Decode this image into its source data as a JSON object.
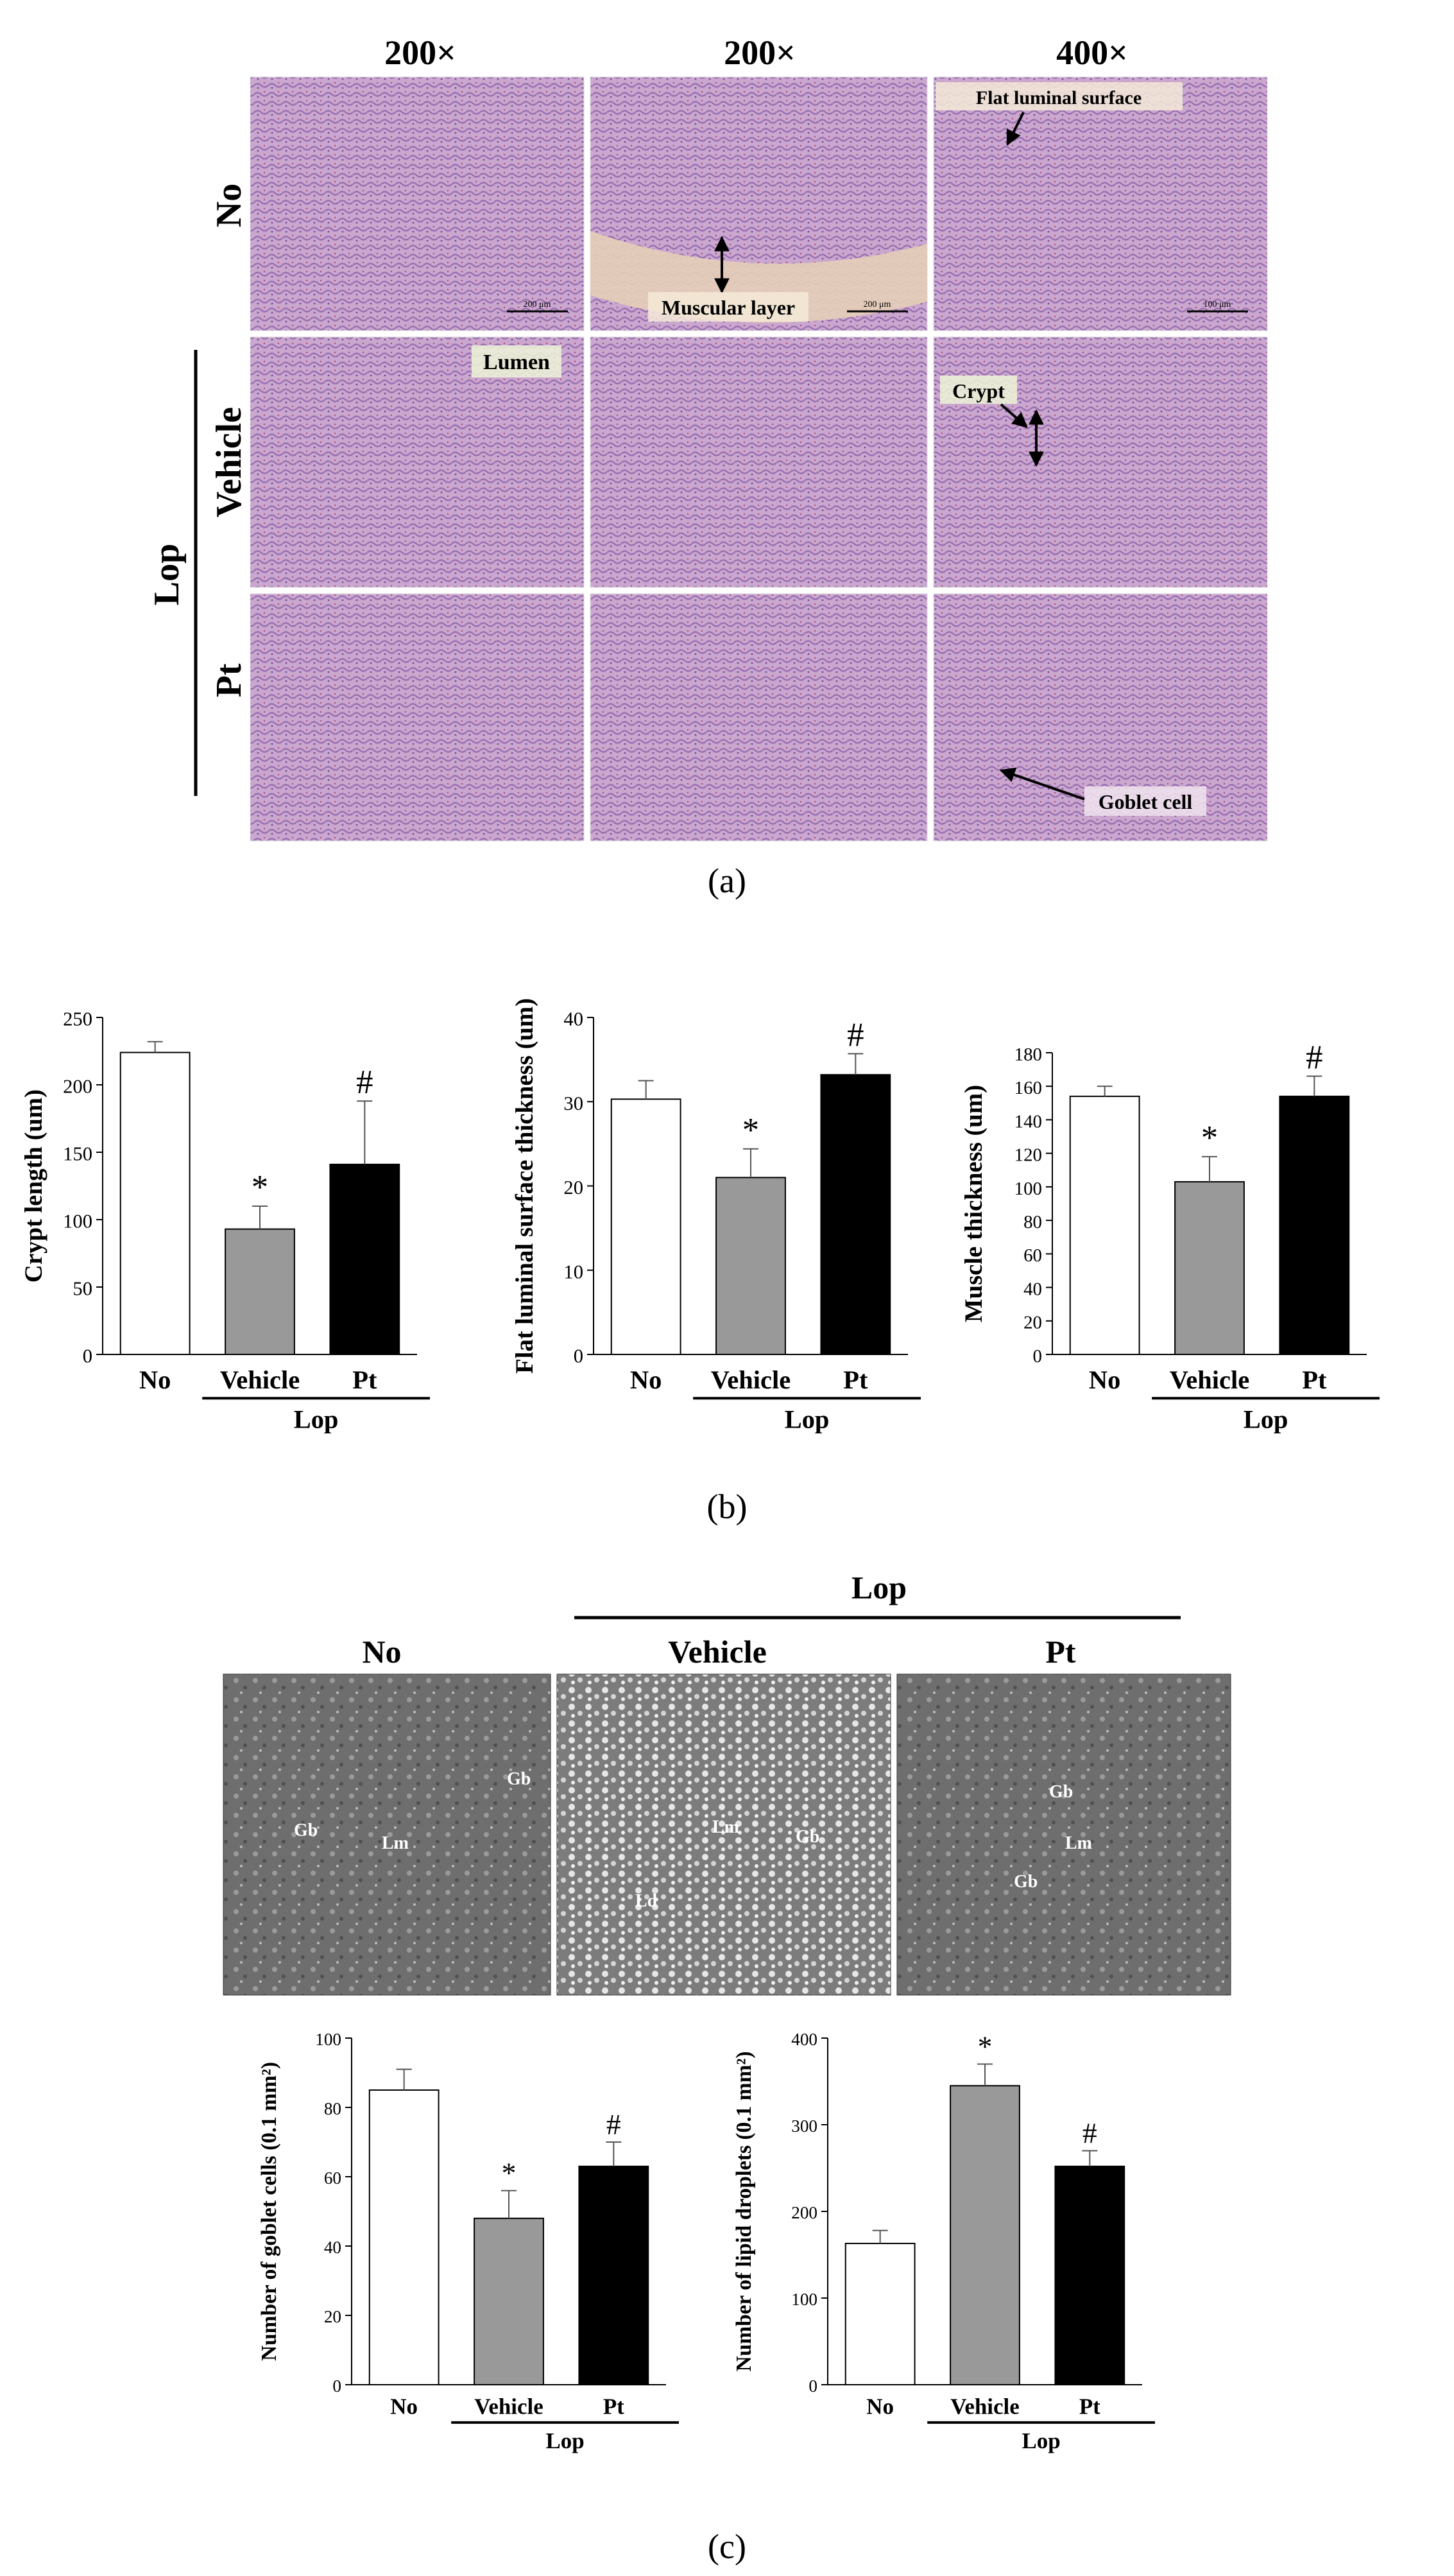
{
  "panel_a": {
    "columns": [
      "200×",
      "200×",
      "400×"
    ],
    "rows": [
      "No",
      "Vehicle",
      "Pt"
    ],
    "group_label": "Lop",
    "annotations": {
      "lumen": "Lumen",
      "muscular_layer": "Muscular layer",
      "flat_luminal_surface": "Flat luminal surface",
      "crypt": "Crypt",
      "goblet_cell": "Goblet cell"
    },
    "scalebars": [
      "200 μm",
      "200 μm",
      "100 μm"
    ],
    "caption": "(a)"
  },
  "panel_b_caption": "(b)",
  "panel_c": {
    "group_label": "Lop",
    "columns": [
      "No",
      "Vehicle",
      "Pt"
    ],
    "tem_labels": {
      "gb": "Gb",
      "lm": "Lm",
      "ld": "Ld"
    },
    "caption": "(c)"
  },
  "colors": {
    "no": "#ffffff",
    "vehicle": "#999999",
    "pt": "#000000"
  },
  "chart_data": [
    {
      "type": "bar",
      "categories": [
        "No",
        "Vehicle",
        "Pt"
      ],
      "group_label": "Lop",
      "values": [
        224,
        93,
        141
      ],
      "errors": [
        8,
        17,
        47
      ],
      "markers": [
        "",
        "*",
        "#"
      ],
      "ylabel": "Crypt length (um)",
      "ylim": [
        0,
        250
      ],
      "yticks": [
        0,
        50,
        100,
        150,
        200,
        250
      ]
    },
    {
      "type": "bar",
      "categories": [
        "No",
        "Vehicle",
        "Pt"
      ],
      "group_label": "Lop",
      "values": [
        30.3,
        21.0,
        33.2
      ],
      "errors": [
        2.2,
        3.4,
        2.5
      ],
      "markers": [
        "",
        "*",
        "#"
      ],
      "ylabel": "Flat luminal surface thickness (um)",
      "ylim": [
        0,
        40
      ],
      "yticks": [
        0,
        10,
        20,
        30,
        40
      ]
    },
    {
      "type": "bar",
      "categories": [
        "No",
        "Vehicle",
        "Pt"
      ],
      "group_label": "Lop",
      "values": [
        154,
        103,
        154
      ],
      "errors": [
        6,
        15,
        12
      ],
      "markers": [
        "",
        "*",
        "#"
      ],
      "ylabel": "Muscle thickness (um)",
      "ylim": [
        0,
        180
      ],
      "yticks": [
        0,
        20,
        40,
        60,
        80,
        100,
        120,
        140,
        160,
        180
      ]
    },
    {
      "type": "bar",
      "categories": [
        "No",
        "Vehicle",
        "Pt"
      ],
      "group_label": "Lop",
      "values": [
        85,
        48,
        63
      ],
      "errors": [
        6,
        8,
        7
      ],
      "markers": [
        "",
        "*",
        "#"
      ],
      "ylabel": "Number of goblet cells (0.1 mm²)",
      "ylim": [
        0,
        100
      ],
      "yticks": [
        0,
        20,
        40,
        60,
        80,
        100
      ]
    },
    {
      "type": "bar",
      "categories": [
        "No",
        "Vehicle",
        "Pt"
      ],
      "group_label": "Lop",
      "values": [
        163,
        345,
        252
      ],
      "errors": [
        15,
        25,
        18
      ],
      "markers": [
        "",
        "*",
        "#"
      ],
      "ylabel": "Number of lipid droplets (0.1 mm²)",
      "ylim": [
        0,
        400
      ],
      "yticks": [
        0,
        100,
        200,
        300,
        400
      ]
    }
  ]
}
